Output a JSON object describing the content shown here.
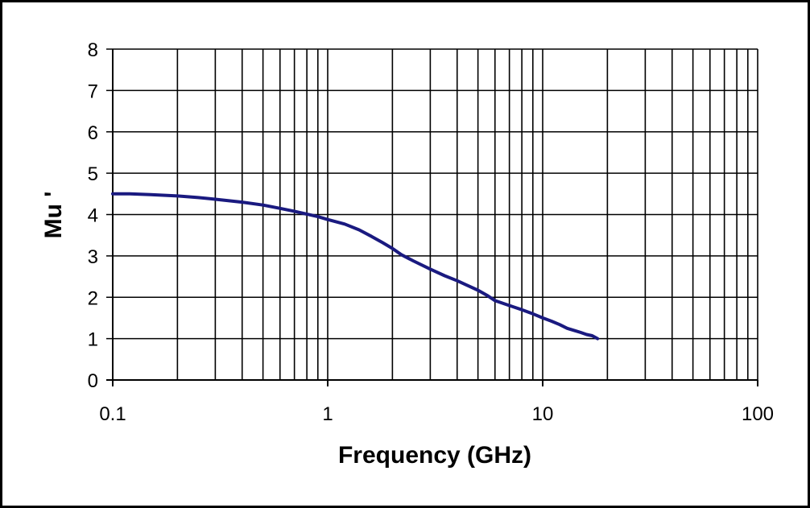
{
  "chart_data": {
    "type": "line",
    "title": "",
    "xlabel": "Frequency (GHz)",
    "ylabel": "Mu '",
    "xscale": "log",
    "xlim": [
      0.1,
      100
    ],
    "ylim": [
      0,
      8
    ],
    "grid": true,
    "legend": "none",
    "x_ticks": [
      "0.1",
      "1",
      "10",
      "100"
    ],
    "y_ticks": [
      "0",
      "1",
      "2",
      "3",
      "4",
      "5",
      "6",
      "7",
      "8"
    ],
    "series": [
      {
        "color": "#1a1a80",
        "x": [
          0.1,
          0.12,
          0.15,
          0.2,
          0.25,
          0.3,
          0.4,
          0.5,
          0.6,
          0.7,
          0.8,
          0.9,
          1.0,
          1.2,
          1.4,
          1.6,
          1.8,
          2.0,
          2.2,
          2.5,
          3.0,
          3.5,
          4.0,
          4.5,
          5.0,
          5.5,
          6.0,
          7.0,
          8.0,
          9.0,
          10.0,
          11.0,
          12.0,
          13.0,
          14.0,
          15.0,
          16.0,
          17.0,
          18.0
        ],
        "y": [
          4.5,
          4.5,
          4.48,
          4.45,
          4.41,
          4.37,
          4.3,
          4.23,
          4.15,
          4.08,
          4.01,
          3.95,
          3.88,
          3.77,
          3.63,
          3.47,
          3.32,
          3.18,
          3.03,
          2.88,
          2.68,
          2.52,
          2.4,
          2.28,
          2.17,
          2.05,
          1.92,
          1.8,
          1.7,
          1.6,
          1.5,
          1.42,
          1.34,
          1.25,
          1.2,
          1.15,
          1.1,
          1.07,
          1.0
        ]
      }
    ]
  }
}
